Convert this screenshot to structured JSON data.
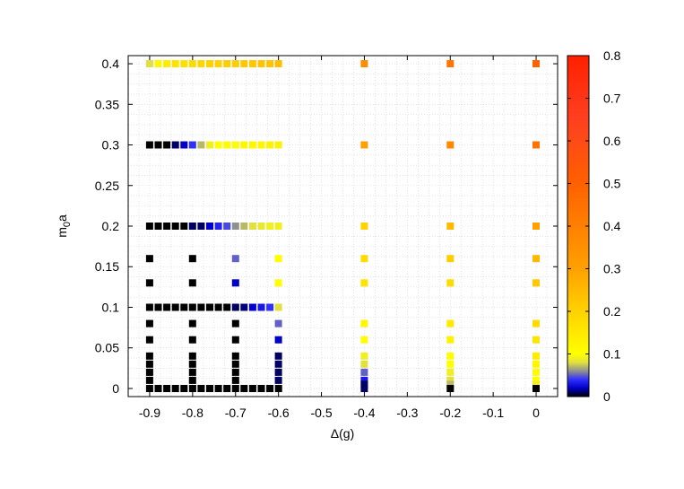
{
  "chart_data": {
    "type": "heatmap",
    "title": "",
    "xlabel": "Δ(g)",
    "ylabel": "m0a",
    "ylabel_main": "m",
    "ylabel_sub": "0",
    "ylabel_tail": "a",
    "xlim": [
      -0.95,
      0.05
    ],
    "ylim": [
      -0.01,
      0.41
    ],
    "xticks": [
      -0.9,
      -0.8,
      -0.7,
      -0.6,
      -0.5,
      -0.4,
      -0.3,
      -0.2,
      -0.1,
      0
    ],
    "xtick_labels": [
      "-0.9",
      "-0.8",
      "-0.7",
      "-0.6",
      "-0.5",
      "-0.4",
      "-0.3",
      "-0.2",
      "-0.1",
      "0"
    ],
    "yticks": [
      0,
      0.05,
      0.1,
      0.15,
      0.2,
      0.25,
      0.3,
      0.35,
      0.4
    ],
    "ytick_labels": [
      "0",
      "0.05",
      "0.1",
      "0.15",
      "0.2",
      "0.25",
      "0.3",
      "0.35",
      "0.4"
    ],
    "grid": true,
    "colorbar": {
      "range": [
        0,
        0.8
      ],
      "ticks": [
        0,
        0.1,
        0.2,
        0.3,
        0.4,
        0.5,
        0.6,
        0.7,
        0.8
      ],
      "tick_labels": [
        "0",
        "0.1",
        "0.2",
        "0.3",
        "0.4",
        "0.5",
        "0.6",
        "0.7",
        "0.8"
      ]
    },
    "rows": [
      {
        "m": 0.4,
        "values": [
          0.08,
          0.12,
          0.14,
          0.16,
          0.17,
          0.18,
          0.19,
          0.2,
          0.2,
          0.21,
          0.21,
          0.22,
          0.22,
          0.23,
          0.23,
          0.24
        ]
      },
      {
        "m": 0.3,
        "values": [
          0.0,
          0.0,
          0.0,
          0.01,
          0.02,
          0.04,
          0.07,
          0.09,
          0.1,
          0.11,
          0.11,
          0.12,
          0.12,
          0.12,
          0.13,
          0.13
        ]
      },
      {
        "m": 0.2,
        "values": [
          0.0,
          0.0,
          0.0,
          0.0,
          0.0,
          0.01,
          0.01,
          0.02,
          0.035,
          0.045,
          0.06,
          0.07,
          0.08,
          0.085,
          0.09,
          0.09
        ]
      },
      {
        "m": 0.1,
        "values": [
          0.0,
          0.0,
          0.0,
          0.0,
          0.0,
          0.0,
          0.0,
          0.0,
          0.0,
          0.0,
          0.01,
          0.012,
          0.02,
          0.03,
          0.04,
          0.08
        ]
      }
    ],
    "row_x_start": -0.9,
    "row_x_step": 0.02,
    "points": [
      {
        "x": -0.4,
        "y": 0.4,
        "v": 0.36
      },
      {
        "x": -0.2,
        "y": 0.4,
        "v": 0.43
      },
      {
        "x": 0,
        "y": 0.4,
        "v": 0.5
      },
      {
        "x": -0.4,
        "y": 0.3,
        "v": 0.3
      },
      {
        "x": -0.2,
        "y": 0.3,
        "v": 0.37
      },
      {
        "x": 0,
        "y": 0.3,
        "v": 0.44
      },
      {
        "x": -0.4,
        "y": 0.2,
        "v": 0.2
      },
      {
        "x": -0.2,
        "y": 0.2,
        "v": 0.25
      },
      {
        "x": 0,
        "y": 0.2,
        "v": 0.3
      },
      {
        "x": -0.9,
        "y": 0.16,
        "v": 0.0
      },
      {
        "x": -0.8,
        "y": 0.16,
        "v": 0.0
      },
      {
        "x": -0.7,
        "y": 0.16,
        "v": 0.05
      },
      {
        "x": -0.6,
        "y": 0.16,
        "v": 0.1
      },
      {
        "x": -0.4,
        "y": 0.16,
        "v": 0.18
      },
      {
        "x": -0.2,
        "y": 0.16,
        "v": 0.21
      },
      {
        "x": 0,
        "y": 0.16,
        "v": 0.25
      },
      {
        "x": -0.9,
        "y": 0.13,
        "v": 0.0
      },
      {
        "x": -0.8,
        "y": 0.13,
        "v": 0.0
      },
      {
        "x": -0.7,
        "y": 0.13,
        "v": 0.02
      },
      {
        "x": -0.6,
        "y": 0.13,
        "v": 0.1
      },
      {
        "x": -0.4,
        "y": 0.13,
        "v": 0.16
      },
      {
        "x": -0.2,
        "y": 0.13,
        "v": 0.18
      },
      {
        "x": 0,
        "y": 0.13,
        "v": 0.22
      },
      {
        "x": -0.9,
        "y": 0.08,
        "v": 0.0
      },
      {
        "x": -0.8,
        "y": 0.08,
        "v": 0.0
      },
      {
        "x": -0.7,
        "y": 0.08,
        "v": 0.0
      },
      {
        "x": -0.6,
        "y": 0.08,
        "v": 0.05
      },
      {
        "x": -0.4,
        "y": 0.08,
        "v": 0.12
      },
      {
        "x": -0.2,
        "y": 0.08,
        "v": 0.15
      },
      {
        "x": 0,
        "y": 0.08,
        "v": 0.18
      },
      {
        "x": -0.9,
        "y": 0.06,
        "v": 0.0
      },
      {
        "x": -0.8,
        "y": 0.06,
        "v": 0.0
      },
      {
        "x": -0.7,
        "y": 0.06,
        "v": 0.0
      },
      {
        "x": -0.6,
        "y": 0.06,
        "v": 0.02
      },
      {
        "x": -0.4,
        "y": 0.06,
        "v": 0.1
      },
      {
        "x": -0.2,
        "y": 0.06,
        "v": 0.13
      },
      {
        "x": 0,
        "y": 0.06,
        "v": 0.16
      },
      {
        "x": -0.9,
        "y": 0.04,
        "v": 0.0
      },
      {
        "x": -0.8,
        "y": 0.04,
        "v": 0.0
      },
      {
        "x": -0.7,
        "y": 0.04,
        "v": 0.0
      },
      {
        "x": -0.6,
        "y": 0.04,
        "v": 0.01
      },
      {
        "x": -0.4,
        "y": 0.04,
        "v": 0.09
      },
      {
        "x": -0.2,
        "y": 0.04,
        "v": 0.11
      },
      {
        "x": 0,
        "y": 0.04,
        "v": 0.14
      },
      {
        "x": -0.9,
        "y": 0.03,
        "v": 0.0
      },
      {
        "x": -0.8,
        "y": 0.03,
        "v": 0.0
      },
      {
        "x": -0.7,
        "y": 0.03,
        "v": 0.0
      },
      {
        "x": -0.6,
        "y": 0.03,
        "v": 0.01
      },
      {
        "x": -0.4,
        "y": 0.03,
        "v": 0.08
      },
      {
        "x": -0.2,
        "y": 0.03,
        "v": 0.1
      },
      {
        "x": 0,
        "y": 0.03,
        "v": 0.12
      },
      {
        "x": -0.9,
        "y": 0.02,
        "v": 0.0
      },
      {
        "x": -0.8,
        "y": 0.02,
        "v": 0.0
      },
      {
        "x": -0.7,
        "y": 0.02,
        "v": 0.0
      },
      {
        "x": -0.6,
        "y": 0.02,
        "v": 0.01
      },
      {
        "x": -0.4,
        "y": 0.02,
        "v": 0.05
      },
      {
        "x": -0.2,
        "y": 0.02,
        "v": 0.09
      },
      {
        "x": 0,
        "y": 0.02,
        "v": 0.11
      },
      {
        "x": -0.9,
        "y": 0.01,
        "v": 0.0
      },
      {
        "x": -0.8,
        "y": 0.01,
        "v": 0.0
      },
      {
        "x": -0.7,
        "y": 0.01,
        "v": 0.0
      },
      {
        "x": -0.6,
        "y": 0.01,
        "v": 0.01
      },
      {
        "x": -0.4,
        "y": 0.01,
        "v": 0.03
      },
      {
        "x": -0.2,
        "y": 0.01,
        "v": 0.08
      },
      {
        "x": 0,
        "y": 0.01,
        "v": 0.1
      },
      {
        "x": -0.4,
        "y": 0.005,
        "v": 0.01
      },
      {
        "x": -0.2,
        "y": 0.005,
        "v": 0.07
      },
      {
        "x": 0,
        "y": 0.005,
        "v": 0.09
      },
      {
        "x": -0.4,
        "y": 0.0,
        "v": 0.01
      },
      {
        "x": -0.2,
        "y": 0.0,
        "v": 0.0
      },
      {
        "x": 0,
        "y": 0.0,
        "v": 0.0
      }
    ],
    "bottom_row": {
      "y": 0.0,
      "x_from": -0.9,
      "x_to": -0.6,
      "x_step": 0.02,
      "v": 0.0
    }
  }
}
